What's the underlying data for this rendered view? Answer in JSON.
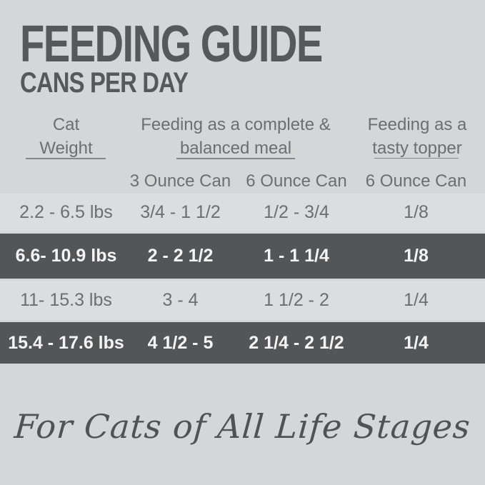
{
  "title": "FEEDING GUIDE",
  "subtitle": "CANS PER DAY",
  "table": {
    "headers": {
      "weight_line1": "Cat",
      "weight_line2": "Weight",
      "meal_line1": "Feeding as a complete &",
      "meal_line2": "balanced meal",
      "topper_line1": "Feeding as a",
      "topper_line2": "tasty topper"
    },
    "sub_headers": {
      "can3": "3 Ounce Can",
      "can6": "6 Ounce Can",
      "topper": "6 Ounce Can"
    },
    "rows": [
      {
        "weight": "2.2 - 6.5 lbs",
        "can3": "3/4 - 1 1/2",
        "can6": "1/2 - 3/4",
        "topper": "1/8"
      },
      {
        "weight": "6.6- 10.9 lbs",
        "can3": "2 - 2 1/2",
        "can6": "1 - 1 1/4",
        "topper": "1/8"
      },
      {
        "weight": "11- 15.3 lbs",
        "can3": "3 - 4",
        "can6": "1 1/2 - 2",
        "topper": "1/4"
      },
      {
        "weight": "15.4 - 17.6 lbs",
        "can3": "4 1/2 - 5",
        "can6": "2 1/4 - 2 1/2",
        "topper": "1/4"
      }
    ]
  },
  "footer": {
    "tagline": "For Cats of All Life Stages"
  },
  "colors": {
    "background": "#d4d6d7",
    "light_row": "#dcdde0",
    "dark_row": "#545557",
    "title_text": "#57585a",
    "table_text": "#6c6e71",
    "dark_row_text": "#f4f4f4",
    "underline": "#85878a",
    "tagline_text": "#505254"
  }
}
